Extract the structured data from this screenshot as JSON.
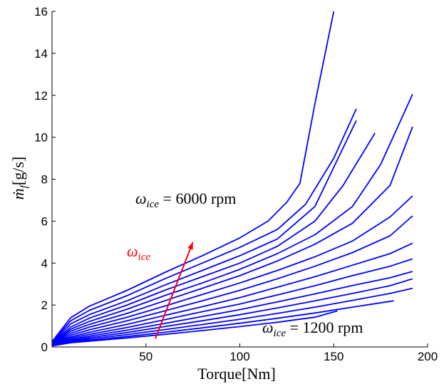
{
  "chart_data": {
    "type": "line",
    "xlabel": "Torque[Nm]",
    "ylabel_main": "ṁ",
    "ylabel_sub": "f",
    "ylabel_unit": "[g/s]",
    "xlim": [
      0,
      200
    ],
    "ylim": [
      0,
      16
    ],
    "xticks": [
      50,
      100,
      150,
      200
    ],
    "yticks": [
      0,
      2,
      4,
      6,
      8,
      10,
      12,
      14,
      16
    ],
    "grid": false,
    "line_color": "#0000ff",
    "annotations": {
      "top": {
        "symbol": "ω",
        "sub": "ice",
        "rest": " = 6000 rpm"
      },
      "bottom": {
        "symbol": "ω",
        "sub": "ice",
        "rest": " = 1200 rpm"
      },
      "arrow_label": {
        "symbol": "ω",
        "sub": "ice"
      },
      "arrow_color": "#ff0000",
      "arrow_start": [
        55,
        0.4
      ],
      "arrow_end": [
        75,
        5.0
      ]
    },
    "series": [
      {
        "x": [
          0,
          10,
          20,
          40,
          60,
          80,
          100,
          115,
          125,
          132,
          140,
          150
        ],
        "y": [
          0.25,
          1.4,
          1.95,
          2.7,
          3.55,
          4.35,
          5.2,
          6.0,
          6.9,
          7.8,
          11.6,
          16.0
        ]
      },
      {
        "x": [
          0,
          10,
          20,
          40,
          60,
          80,
          100,
          120,
          135,
          150,
          162
        ],
        "y": [
          0.22,
          1.25,
          1.75,
          2.45,
          3.25,
          4.0,
          4.75,
          5.6,
          6.8,
          9.0,
          11.35
        ]
      },
      {
        "x": [
          0,
          10,
          20,
          40,
          60,
          80,
          100,
          120,
          140,
          162
        ],
        "y": [
          0.2,
          1.1,
          1.55,
          2.2,
          2.95,
          3.65,
          4.35,
          5.15,
          6.7,
          10.8
        ]
      },
      {
        "x": [
          0,
          10,
          20,
          40,
          60,
          80,
          100,
          120,
          140,
          155,
          172
        ],
        "y": [
          0.18,
          0.95,
          1.38,
          2.0,
          2.7,
          3.35,
          4.0,
          4.8,
          6.0,
          7.7,
          10.2
        ]
      },
      {
        "x": [
          0,
          10,
          20,
          40,
          60,
          80,
          100,
          120,
          140,
          160,
          175,
          192
        ],
        "y": [
          0.17,
          0.85,
          1.22,
          1.8,
          2.45,
          3.05,
          3.7,
          4.45,
          5.35,
          6.7,
          8.7,
          12.05
        ]
      },
      {
        "x": [
          0,
          10,
          20,
          40,
          60,
          80,
          100,
          120,
          140,
          160,
          180,
          192
        ],
        "y": [
          0.15,
          0.75,
          1.08,
          1.6,
          2.2,
          2.8,
          3.4,
          4.1,
          4.9,
          5.9,
          7.7,
          10.5
        ]
      },
      {
        "x": [
          0,
          10,
          20,
          40,
          60,
          80,
          100,
          120,
          140,
          160,
          180,
          192
        ],
        "y": [
          0.14,
          0.65,
          0.95,
          1.42,
          1.95,
          2.5,
          3.05,
          3.65,
          4.3,
          5.05,
          6.2,
          7.2
        ]
      },
      {
        "x": [
          0,
          10,
          20,
          40,
          60,
          80,
          100,
          120,
          140,
          160,
          180,
          192
        ],
        "y": [
          0.12,
          0.56,
          0.82,
          1.25,
          1.72,
          2.2,
          2.7,
          3.25,
          3.85,
          4.5,
          5.3,
          6.25
        ]
      },
      {
        "x": [
          0,
          10,
          20,
          40,
          60,
          80,
          100,
          120,
          140,
          160,
          180,
          192
        ],
        "y": [
          0.11,
          0.48,
          0.7,
          1.08,
          1.5,
          1.92,
          2.35,
          2.85,
          3.35,
          3.9,
          4.45,
          4.95
        ]
      },
      {
        "x": [
          0,
          10,
          20,
          40,
          60,
          80,
          100,
          120,
          140,
          160,
          180,
          192
        ],
        "y": [
          0.1,
          0.42,
          0.6,
          0.93,
          1.3,
          1.68,
          2.05,
          2.48,
          2.92,
          3.4,
          3.85,
          4.2
        ]
      },
      {
        "x": [
          0,
          10,
          20,
          40,
          60,
          80,
          100,
          120,
          140,
          160,
          180,
          192
        ],
        "y": [
          0.09,
          0.36,
          0.52,
          0.8,
          1.12,
          1.45,
          1.78,
          2.15,
          2.53,
          2.93,
          3.3,
          3.6
        ]
      },
      {
        "x": [
          0,
          10,
          20,
          40,
          60,
          80,
          100,
          120,
          140,
          160,
          180,
          192
        ],
        "y": [
          0.08,
          0.31,
          0.45,
          0.69,
          0.97,
          1.25,
          1.54,
          1.86,
          2.2,
          2.55,
          2.92,
          3.25
        ]
      },
      {
        "x": [
          0,
          10,
          20,
          40,
          60,
          80,
          100,
          120,
          140,
          160,
          180,
          192
        ],
        "y": [
          0.07,
          0.27,
          0.38,
          0.59,
          0.83,
          1.07,
          1.32,
          1.6,
          1.9,
          2.22,
          2.55,
          2.8
        ]
      },
      {
        "x": [
          0,
          10,
          20,
          40,
          60,
          80,
          100,
          120,
          140,
          160,
          182
        ],
        "y": [
          0.06,
          0.23,
          0.32,
          0.5,
          0.7,
          0.91,
          1.13,
          1.37,
          1.62,
          1.9,
          2.2
        ]
      },
      {
        "x": [
          0,
          10,
          20,
          40,
          60,
          80,
          100,
          120,
          140,
          152
        ],
        "y": [
          0.05,
          0.2,
          0.28,
          0.43,
          0.6,
          0.78,
          0.97,
          1.18,
          1.42,
          1.72
        ]
      }
    ]
  }
}
